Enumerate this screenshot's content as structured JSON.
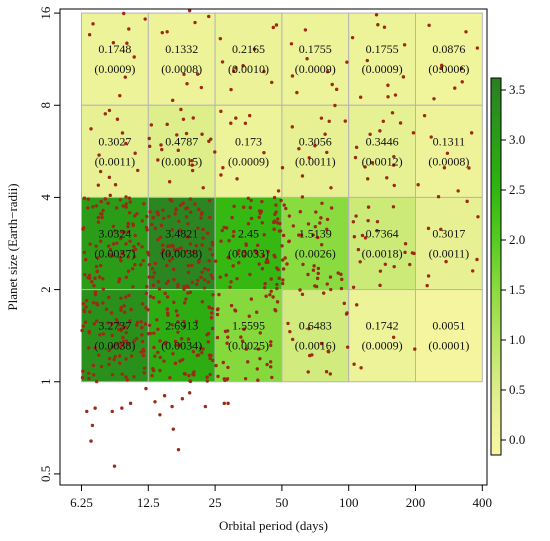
{
  "chart_data": {
    "type": "heatmap",
    "title": "",
    "xlabel": "Orbital period (days)",
    "ylabel": "Planet size (Earth−radii)",
    "x_scale": "log",
    "y_scale": "log",
    "xlim": [
      5.0,
      420
    ],
    "ylim": [
      0.46,
      16.5
    ],
    "x_ticks": [
      6.25,
      12.5,
      25,
      50,
      100,
      200,
      400
    ],
    "x_tick_labels": [
      "6.25",
      "12.5",
      "25",
      "50",
      "100",
      "200",
      "400"
    ],
    "y_ticks": [
      0.5,
      1,
      2,
      4,
      8,
      16
    ],
    "y_tick_labels": [
      "0.5",
      "1",
      "2",
      "4",
      "8",
      "16"
    ],
    "x_bin_edges": [
      6.25,
      12.5,
      25,
      50,
      100,
      200,
      400
    ],
    "y_bin_edges": [
      1,
      2,
      4,
      8,
      16
    ],
    "cells": [
      {
        "period_bin": [
          6.25,
          12.5
        ],
        "size_bin": [
          8,
          16
        ],
        "value": 0.1748,
        "value_label": "0.1748",
        "error_label": "(0.0009)"
      },
      {
        "period_bin": [
          12.5,
          25
        ],
        "size_bin": [
          8,
          16
        ],
        "value": 0.1332,
        "value_label": "0.1332",
        "error_label": "(0.0008)"
      },
      {
        "period_bin": [
          25,
          50
        ],
        "size_bin": [
          8,
          16
        ],
        "value": 0.2165,
        "value_label": "0.2165",
        "error_label": "(0.0010)"
      },
      {
        "period_bin": [
          50,
          100
        ],
        "size_bin": [
          8,
          16
        ],
        "value": 0.1755,
        "value_label": "0.1755",
        "error_label": "(0.0009)"
      },
      {
        "period_bin": [
          100,
          200
        ],
        "size_bin": [
          8,
          16
        ],
        "value": 0.1755,
        "value_label": "0.1755",
        "error_label": "(0.0009)"
      },
      {
        "period_bin": [
          200,
          400
        ],
        "size_bin": [
          8,
          16
        ],
        "value": 0.0876,
        "value_label": "0.0876",
        "error_label": "(0.0006)"
      },
      {
        "period_bin": [
          6.25,
          12.5
        ],
        "size_bin": [
          4,
          8
        ],
        "value": 0.3027,
        "value_label": "0.3027",
        "error_label": "(0.0011)"
      },
      {
        "period_bin": [
          12.5,
          25
        ],
        "size_bin": [
          4,
          8
        ],
        "value": 0.4787,
        "value_label": "0.4787",
        "error_label": "(0.0015)"
      },
      {
        "period_bin": [
          25,
          50
        ],
        "size_bin": [
          4,
          8
        ],
        "value": 0.173,
        "value_label": "0.173",
        "error_label": "(0.0009)"
      },
      {
        "period_bin": [
          50,
          100
        ],
        "size_bin": [
          4,
          8
        ],
        "value": 0.3056,
        "value_label": "0.3056",
        "error_label": "(0.0011)"
      },
      {
        "period_bin": [
          100,
          200
        ],
        "size_bin": [
          4,
          8
        ],
        "value": 0.3446,
        "value_label": "0.3446",
        "error_label": "(0.0012)"
      },
      {
        "period_bin": [
          200,
          400
        ],
        "size_bin": [
          4,
          8
        ],
        "value": 0.1311,
        "value_label": "0.1311",
        "error_label": "(0.0008)"
      },
      {
        "period_bin": [
          6.25,
          12.5
        ],
        "size_bin": [
          2,
          4
        ],
        "value": 3.0324,
        "value_label": "3.0324",
        "error_label": "(0.0037)"
      },
      {
        "period_bin": [
          12.5,
          25
        ],
        "size_bin": [
          2,
          4
        ],
        "value": 3.4821,
        "value_label": "3.4821",
        "error_label": "(0.0038)"
      },
      {
        "period_bin": [
          25,
          50
        ],
        "size_bin": [
          2,
          4
        ],
        "value": 2.45,
        "value_label": "2.45",
        "error_label": "(0.0033)"
      },
      {
        "period_bin": [
          50,
          100
        ],
        "size_bin": [
          2,
          4
        ],
        "value": 1.5139,
        "value_label": "1.5139",
        "error_label": "(0.0026)"
      },
      {
        "period_bin": [
          100,
          200
        ],
        "size_bin": [
          2,
          4
        ],
        "value": 0.7364,
        "value_label": "0.7364",
        "error_label": "(0.0018)"
      },
      {
        "period_bin": [
          200,
          400
        ],
        "size_bin": [
          2,
          4
        ],
        "value": 0.3017,
        "value_label": "0.3017",
        "error_label": "(0.0011)"
      },
      {
        "period_bin": [
          6.25,
          12.5
        ],
        "size_bin": [
          1,
          2
        ],
        "value": 3.2737,
        "value_label": "3.2737",
        "error_label": "(0.0038)"
      },
      {
        "period_bin": [
          12.5,
          25
        ],
        "size_bin": [
          1,
          2
        ],
        "value": 2.6913,
        "value_label": "2.6913",
        "error_label": "(0.0034)"
      },
      {
        "period_bin": [
          25,
          50
        ],
        "size_bin": [
          1,
          2
        ],
        "value": 1.5595,
        "value_label": "1.5595",
        "error_label": "(0.0025)"
      },
      {
        "period_bin": [
          50,
          100
        ],
        "size_bin": [
          1,
          2
        ],
        "value": 0.6483,
        "value_label": "0.6483",
        "error_label": "(0.0016)"
      },
      {
        "period_bin": [
          100,
          200
        ],
        "size_bin": [
          1,
          2
        ],
        "value": 0.1742,
        "value_label": "0.1742",
        "error_label": "(0.0009)"
      },
      {
        "period_bin": [
          200,
          400
        ],
        "size_bin": [
          1,
          2
        ],
        "value": 0.0051,
        "value_label": "0.0051",
        "error_label": "(0.0001)"
      }
    ],
    "colorbar": {
      "range": [
        -0.15,
        3.62
      ],
      "ticks": [
        0.0,
        0.5,
        1.0,
        1.5,
        2.0,
        2.5,
        3.0,
        3.5
      ],
      "tick_labels": [
        "0.0",
        "0.5",
        "1.0",
        "1.5",
        "2.0",
        "2.5",
        "3.0",
        "3.5"
      ],
      "colors": [
        "#fbf7a3",
        "#e3f091",
        "#bfe66a",
        "#8fdc42",
        "#55cc1f",
        "#2eb40f",
        "#2a9a19",
        "#2b7e22"
      ]
    },
    "scatter": {
      "color": "#9c2a14",
      "points": [
        [
          6.6,
          0.8
        ],
        [
          7.2,
          0.82
        ],
        [
          7.0,
          0.72
        ],
        [
          6.9,
          0.64
        ],
        [
          8.6,
          0.8
        ],
        [
          9.5,
          0.82
        ],
        [
          10.4,
          0.85
        ],
        [
          12.2,
          0.95
        ],
        [
          13.4,
          0.86
        ],
        [
          14.1,
          0.78
        ],
        [
          14.8,
          0.9
        ],
        [
          16.0,
          0.83
        ],
        [
          16.2,
          0.7
        ],
        [
          17.1,
          0.6
        ],
        [
          17.8,
          0.88
        ],
        [
          19.2,
          0.92
        ],
        [
          22.6,
          0.83
        ],
        [
          27.5,
          0.85
        ],
        [
          28.6,
          0.85
        ],
        [
          8.8,
          0.53
        ],
        [
          11.8,
          16.4
        ],
        [
          13.6,
          16.6
        ],
        [
          19.2,
          16.3
        ],
        [
          23.4,
          15.6
        ],
        [
          34.1,
          16.7
        ],
        [
          38.5,
          16.5
        ],
        [
          6.8,
          13.6
        ],
        [
          8.7,
          12.8
        ],
        [
          10.8,
          11.5
        ],
        [
          12.1,
          15.3
        ],
        [
          15.2,
          13.9
        ],
        [
          18.1,
          10.1
        ],
        [
          20.3,
          14.9
        ],
        [
          26.4,
          13.2
        ],
        [
          31.0,
          10.6
        ],
        [
          37.6,
          12.2
        ],
        [
          45.0,
          9.5
        ],
        [
          55.2,
          12.7
        ],
        [
          63.8,
          14.1
        ],
        [
          80.3,
          10.3
        ],
        [
          104.1,
          13.3
        ],
        [
          121.3,
          11.2
        ],
        [
          133.5,
          15.8
        ],
        [
          150.2,
          9.3
        ],
        [
          178.6,
          12.6
        ],
        [
          230.3,
          14.6
        ],
        [
          262.5,
          10.8
        ],
        [
          300.6,
          9.1
        ],
        [
          337.8,
          13.9
        ],
        [
          380.0,
          12.3
        ],
        [
          9.3,
          8.6
        ],
        [
          16.1,
          8.3
        ],
        [
          29.5,
          9.0
        ],
        [
          58.4,
          8.8
        ],
        [
          113.2,
          8.5
        ],
        [
          242.3,
          8.4
        ],
        [
          6.9,
          6.7
        ],
        [
          7.5,
          5.5
        ],
        [
          8.0,
          7.5
        ],
        [
          8.9,
          4.4
        ],
        [
          9.9,
          6.0
        ],
        [
          11.2,
          4.9
        ],
        [
          12.9,
          6.9
        ],
        [
          13.8,
          5.3
        ],
        [
          15.6,
          4.5
        ],
        [
          16.8,
          6.4
        ],
        [
          18.0,
          7.2
        ],
        [
          19.7,
          5.1
        ],
        [
          22.1,
          4.3
        ],
        [
          23.9,
          6.2
        ],
        [
          27.1,
          5.0
        ],
        [
          31.4,
          4.6
        ],
        [
          35.8,
          7.4
        ],
        [
          41.5,
          5.6
        ],
        [
          48.3,
          4.2
        ],
        [
          55.7,
          6.8
        ],
        [
          61.9,
          4.7
        ],
        [
          70.4,
          5.9
        ],
        [
          83.2,
          4.3
        ],
        [
          96.5,
          7.1
        ],
        [
          107.3,
          5.4
        ],
        [
          121.8,
          4.6
        ],
        [
          138.2,
          6.6
        ],
        [
          159.4,
          5.1
        ],
        [
          171.3,
          7.0
        ],
        [
          205.6,
          4.4
        ],
        [
          235.4,
          6.3
        ],
        [
          270.0,
          5.0
        ],
        [
          311.4,
          4.2
        ],
        [
          358.2,
          6.5
        ]
      ]
    }
  }
}
